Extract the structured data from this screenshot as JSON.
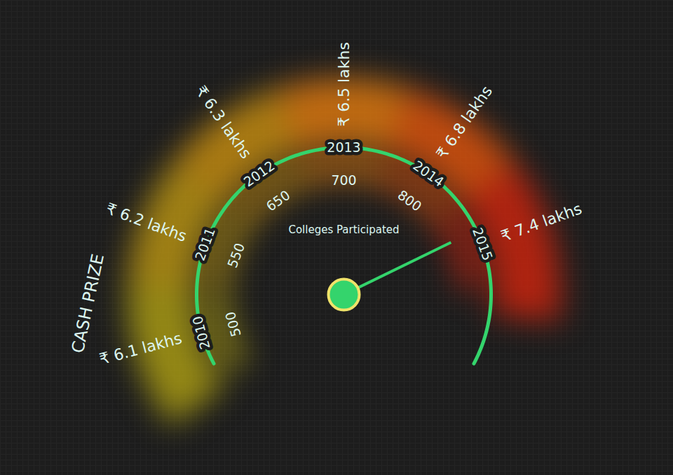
{
  "chart_data": {
    "type": "gauge",
    "categories": [
      "2010",
      "2011",
      "2012",
      "2013",
      "2014",
      "2015"
    ],
    "series": [
      {
        "name": "CASH PRIZE",
        "values": [
          6.1,
          6.2,
          6.3,
          6.5,
          6.8,
          7.4
        ],
        "value_labels": [
          "₹ 6.1 lakhs",
          "₹ 6.2 lakhs",
          "₹ 6.3 lakhs",
          "₹ 6.5 lakhs",
          "₹ 6.8 lakhs",
          "₹ 7.4 lakhs"
        ]
      },
      {
        "name": "Colleges Participated",
        "values": [
          500,
          550,
          650,
          700,
          800,
          null
        ]
      }
    ],
    "color": "#34d46c",
    "data_labels": true
  }
}
